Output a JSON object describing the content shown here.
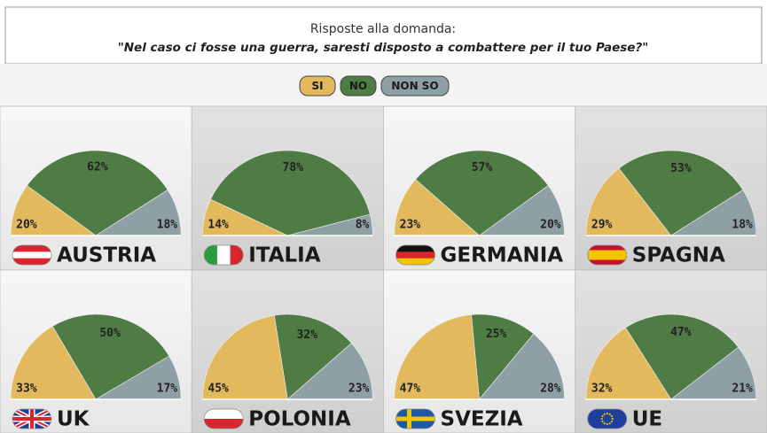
{
  "header": {
    "title": "Risposte alla domanda:",
    "subtitle": "\"Nel caso ci fosse una guerra, saresti disposto a combattere per il tuo Paese?\""
  },
  "legend": [
    {
      "name": "SI",
      "color": "#e2b95c"
    },
    {
      "name": "NO",
      "color": "#4f7b45"
    },
    {
      "name": "NON SO",
      "color": "#8e9fa5"
    }
  ],
  "chart_data": [
    {
      "type": "pie",
      "title": "AUSTRIA",
      "values": [
        20,
        62,
        18
      ],
      "value_labels": [
        "20%",
        "62%",
        "18%"
      ]
    },
    {
      "type": "pie",
      "title": "ITALIA",
      "values": [
        14,
        78,
        8
      ],
      "value_labels": [
        "14%",
        "78%",
        "8%"
      ]
    },
    {
      "type": "pie",
      "title": "GERMANIA",
      "values": [
        23,
        57,
        20
      ],
      "value_labels": [
        "23%",
        "57%",
        "20%"
      ]
    },
    {
      "type": "pie",
      "title": "SPAGNA",
      "values": [
        29,
        53,
        18
      ],
      "value_labels": [
        "29%",
        "53%",
        "18%"
      ]
    },
    {
      "type": "pie",
      "title": "UK",
      "values": [
        33,
        50,
        17
      ],
      "value_labels": [
        "33%",
        "50%",
        "17%"
      ]
    },
    {
      "type": "pie",
      "title": "POLONIA",
      "values": [
        45,
        32,
        23
      ],
      "value_labels": [
        "45%",
        "32%",
        "23%"
      ]
    },
    {
      "type": "pie",
      "title": "SVEZIA",
      "values": [
        47,
        25,
        28
      ],
      "value_labels": [
        "47%",
        "25%",
        "28%"
      ]
    },
    {
      "type": "pie",
      "title": "UE",
      "values": [
        32,
        47,
        21
      ],
      "value_labels": [
        "32%",
        "47%",
        "21%"
      ]
    }
  ]
}
